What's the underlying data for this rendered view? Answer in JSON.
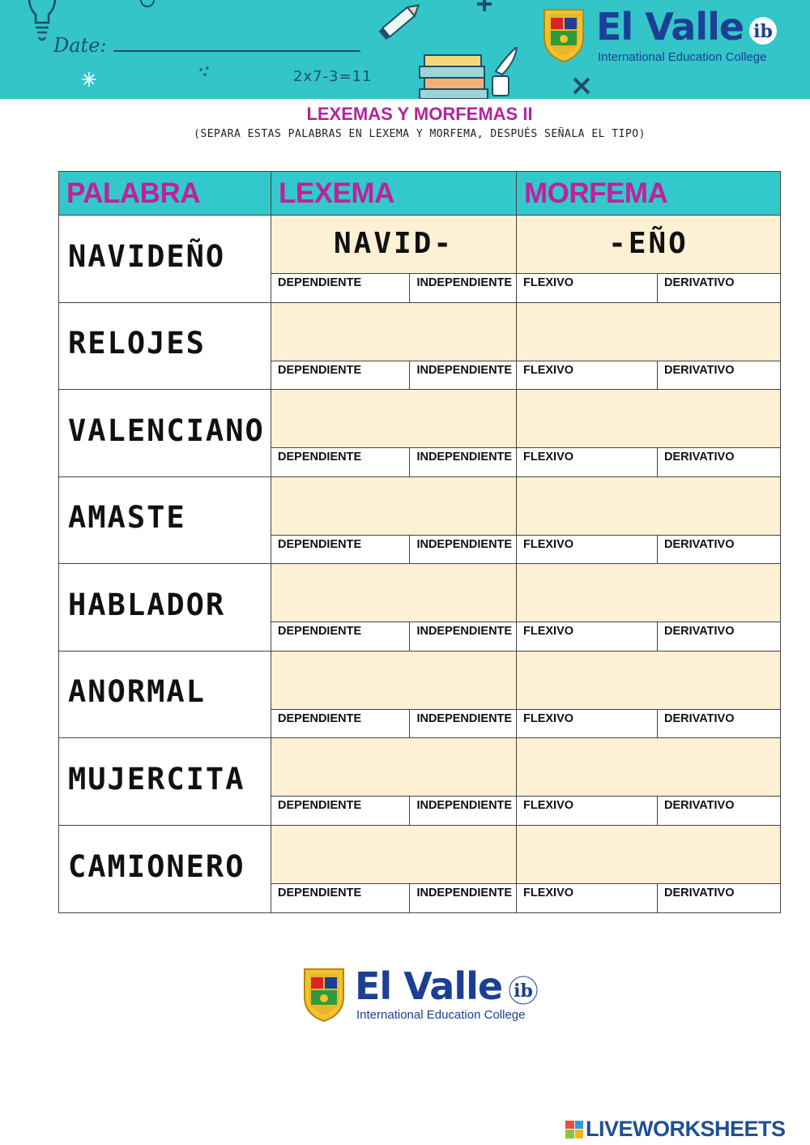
{
  "header": {
    "date_label": "Date:",
    "math_doodle": "2x7-3=11",
    "brand": {
      "name": "El Valle",
      "sub": "International Education College"
    }
  },
  "title": "LEXEMAS Y MORFEMAS II",
  "subtitle": "(SEPARA ESTAS PALABRAS EN LEXEMA Y MORFEMA, DESPUÉS SEÑALA EL TIPO)",
  "table": {
    "headers": [
      "PALABRA",
      "LEXEMA",
      "MORFEMA"
    ],
    "lexema_options": [
      "DEPENDIENTE",
      "INDEPENDIENTE"
    ],
    "morfema_options": [
      "FLEXIVO",
      "DERIVATIVO"
    ],
    "rows": [
      {
        "word": "NAVIDEÑO",
        "lexema": "NAVID-",
        "morfema": "-EÑO"
      },
      {
        "word": "RELOJES",
        "lexema": "",
        "morfema": ""
      },
      {
        "word": "VALENCIANO",
        "lexema": "",
        "morfema": ""
      },
      {
        "word": "AMASTE",
        "lexema": "",
        "morfema": ""
      },
      {
        "word": "HABLADOR",
        "lexema": "",
        "morfema": ""
      },
      {
        "word": "ANORMAL",
        "lexema": "",
        "morfema": ""
      },
      {
        "word": "MUJERCITA",
        "lexema": "",
        "morfema": ""
      },
      {
        "word": "CAMIONERO",
        "lexema": "",
        "morfema": ""
      }
    ]
  },
  "footer": {
    "brand": {
      "name": "El Valle",
      "sub": "International Education College"
    }
  },
  "watermark": {
    "mark": "LIVE",
    "text": "LIVEWORKSHEETS"
  },
  "colors": {
    "teal": "#33c8cb",
    "magenta": "#c0209c",
    "cream": "#fdf0d5",
    "navy": "#1c3f95"
  }
}
